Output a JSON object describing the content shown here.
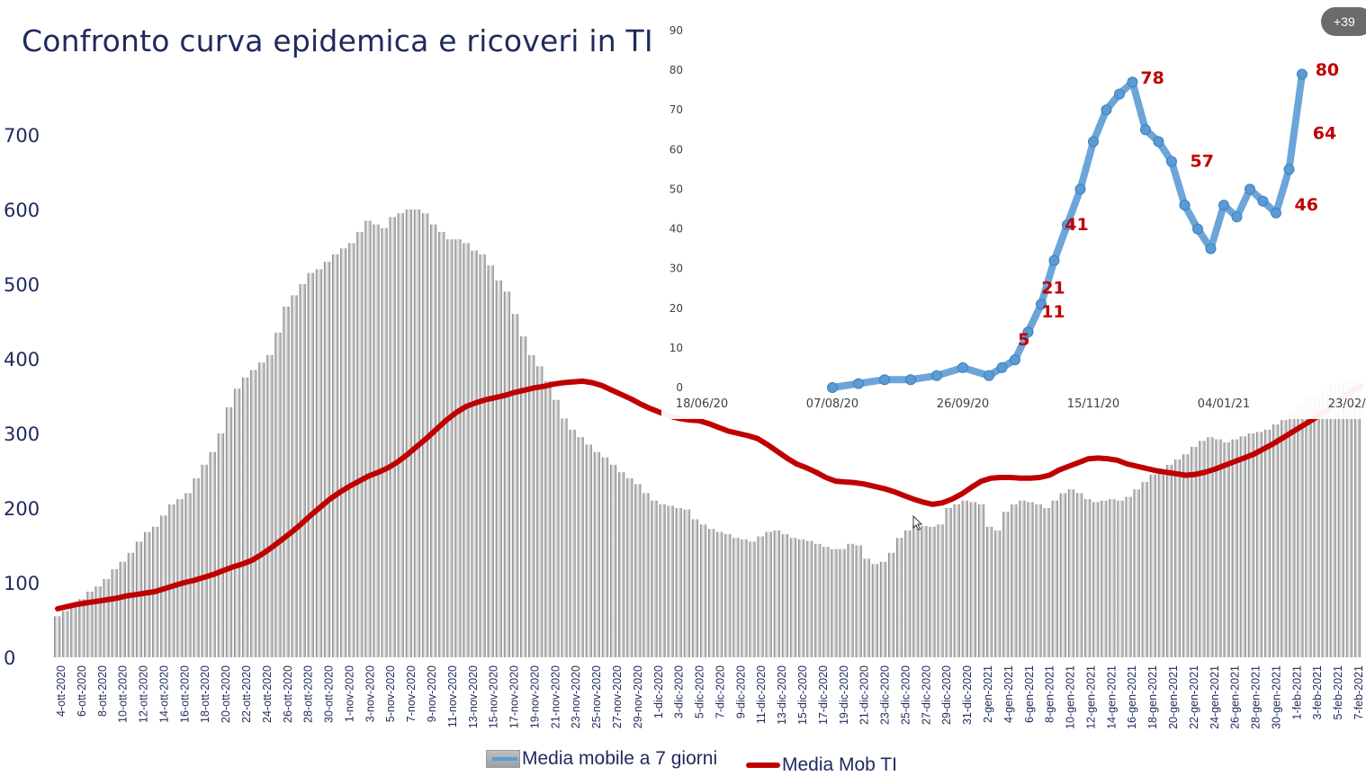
{
  "header": {
    "title": "Confronto curva epidemica e ricoveri in TI",
    "badge": "+39"
  },
  "colors": {
    "bar": "#a6a6a6",
    "main_line": "#c00000",
    "inset_line": "#5b9bd5",
    "inset_label": "#c00000",
    "title": "#1f2a5c"
  },
  "legend": {
    "bars_label": "Media mobile a 7 giorni",
    "line_label": "Media Mob TI"
  },
  "chart_data": [
    {
      "type": "bar",
      "title": "",
      "xlabel": "",
      "ylabel": "",
      "ylim": [
        0,
        700
      ],
      "y_ticks": [
        0,
        100,
        200,
        300,
        400,
        500,
        600,
        700
      ],
      "x_tick_labels": [
        "4-ott-2020",
        "6-ott-2020",
        "8-ott-2020",
        "10-ott-2020",
        "12-ott-2020",
        "14-ott-2020",
        "16-ott-2020",
        "18-ott-2020",
        "20-ott-2020",
        "22-ott-2020",
        "24-ott-2020",
        "26-ott-2020",
        "28-ott-2020",
        "30-ott-2020",
        "1-nov-2020",
        "3-nov-2020",
        "5-nov-2020",
        "7-nov-2020",
        "9-nov-2020",
        "11-nov-2020",
        "13-nov-2020",
        "15-nov-2020",
        "17-nov-2020",
        "19-nov-2020",
        "21-nov-2020",
        "23-nov-2020",
        "25-nov-2020",
        "27-nov-2020",
        "29-nov-2020",
        "1-dic-2020",
        "3-dic-2020",
        "5-dic-2020",
        "7-dic-2020",
        "9-dic-2020",
        "11-dic-2020",
        "13-dic-2020",
        "15-dic-2020",
        "17-dic-2020",
        "19-dic-2020",
        "21-dic-2020",
        "23-dic-2020",
        "25-dic-2020",
        "27-dic-2020",
        "29-dic-2020",
        "31-dic-2020",
        "2-gen-2021",
        "4-gen-2021",
        "6-gen-2021",
        "8-gen-2021",
        "10-gen-2021",
        "12-gen-2021",
        "14-gen-2021",
        "16-gen-2021",
        "18-gen-2021",
        "20-gen-2021",
        "22-gen-2021",
        "24-gen-2021",
        "26-gen-2021",
        "28-gen-2021",
        "30-gen-2021",
        "1-feb-2021",
        "3-feb-2021",
        "5-feb-2021",
        "7-feb-2021"
      ],
      "series": [
        {
          "name": "Media mobile a 7 giorni",
          "type": "bar",
          "values": [
            55,
            62,
            70,
            78,
            88,
            95,
            105,
            118,
            128,
            140,
            155,
            168,
            175,
            190,
            205,
            212,
            220,
            240,
            258,
            275,
            300,
            335,
            360,
            375,
            385,
            395,
            405,
            435,
            470,
            485,
            500,
            515,
            520,
            530,
            540,
            548,
            555,
            570,
            585,
            580,
            575,
            590,
            595,
            600,
            600,
            595,
            580,
            570,
            560,
            560,
            555,
            545,
            540,
            525,
            505,
            490,
            460,
            430,
            405,
            390,
            370,
            345,
            320,
            305,
            295,
            285,
            275,
            268,
            258,
            248,
            240,
            232,
            220,
            210,
            205,
            203,
            200,
            198,
            185,
            178,
            172,
            168,
            165,
            160,
            158,
            155,
            162,
            168,
            170,
            165,
            160,
            158,
            156,
            152,
            148,
            145,
            145,
            152,
            150,
            132,
            125,
            128,
            140,
            160,
            170,
            178,
            176,
            175,
            178,
            200,
            205,
            210,
            208,
            205,
            175,
            170,
            195,
            205,
            210,
            208,
            205,
            200,
            210,
            220,
            225,
            220,
            212,
            208,
            210,
            212,
            210,
            215,
            225,
            235,
            245,
            250,
            258,
            265,
            272,
            282,
            290,
            295,
            292,
            288,
            292,
            296,
            300,
            302,
            305,
            312,
            318,
            330,
            338,
            348,
            350,
            358,
            365,
            368,
            370,
            372
          ]
        },
        {
          "name": "Media Mob TI",
          "type": "line",
          "values": [
            65,
            68,
            71,
            73,
            75,
            77,
            79,
            82,
            84,
            86,
            88,
            92,
            96,
            100,
            103,
            107,
            111,
            116,
            121,
            125,
            130,
            138,
            147,
            157,
            167,
            178,
            190,
            201,
            212,
            221,
            229,
            236,
            243,
            248,
            254,
            262,
            272,
            283,
            294,
            306,
            318,
            328,
            336,
            341,
            345,
            348,
            351,
            355,
            358,
            361,
            363,
            366,
            368,
            369,
            370,
            368,
            364,
            358,
            352,
            346,
            339,
            333,
            328,
            323,
            320,
            318,
            317,
            313,
            308,
            303,
            300,
            297,
            293,
            285,
            276,
            267,
            259,
            254,
            248,
            241,
            236,
            235,
            234,
            232,
            229,
            226,
            222,
            217,
            212,
            208,
            205,
            207,
            212,
            219,
            228,
            236,
            240,
            241,
            241,
            240,
            240,
            241,
            244,
            251,
            256,
            261,
            266,
            267,
            266,
            264,
            259,
            256,
            253,
            250,
            248,
            246,
            244,
            245,
            248,
            252,
            257,
            262,
            267,
            272,
            279,
            286,
            294,
            302,
            310,
            318,
            327,
            336,
            346,
            356,
            363
          ]
        }
      ]
    },
    {
      "type": "scatter",
      "title": "",
      "xlabel": "",
      "ylabel": "",
      "ylim": [
        0,
        90
      ],
      "y_ticks": [
        0,
        10,
        20,
        30,
        40,
        50,
        60,
        70,
        80,
        90
      ],
      "x_tick_labels": [
        "18/06/20",
        "07/08/20",
        "26/09/20",
        "15/11/20",
        "04/01/21",
        "23/02/21"
      ],
      "x_range": [
        "18/06/20",
        "23/02/21"
      ],
      "series": [
        {
          "name": "",
          "x": [
            "2020-08-07",
            "2020-08-17",
            "2020-08-27",
            "2020-09-06",
            "2020-09-16",
            "2020-09-26",
            "2020-10-06",
            "2020-10-11",
            "2020-10-16",
            "2020-10-21",
            "2020-10-26",
            "2020-10-31",
            "2020-11-05",
            "2020-11-10",
            "2020-11-15",
            "2020-11-20",
            "2020-11-25",
            "2020-11-30",
            "2020-12-05",
            "2020-12-10",
            "2020-12-15",
            "2020-12-20",
            "2020-12-25",
            "2020-12-30",
            "2021-01-04",
            "2021-01-09",
            "2021-01-14",
            "2021-01-19",
            "2021-01-24",
            "2021-01-29",
            "2021-02-03"
          ],
          "y": [
            0,
            1,
            2,
            2,
            3,
            5,
            3,
            5,
            7,
            14,
            21,
            32,
            41,
            50,
            62,
            70,
            74,
            77,
            65,
            62,
            57,
            46,
            40,
            35,
            46,
            43,
            50,
            47,
            44,
            55,
            79
          ]
        }
      ],
      "annotations": [
        {
          "text": "78",
          "x": "2020-12-01",
          "y": 78
        },
        {
          "text": "80",
          "x": "2021-02-06",
          "y": 80
        },
        {
          "text": "64",
          "x": "2021-02-05",
          "y": 64
        },
        {
          "text": "57",
          "x": "2020-12-20",
          "y": 57
        },
        {
          "text": "46",
          "x": "2021-01-29",
          "y": 46
        },
        {
          "text": "41",
          "x": "2020-11-02",
          "y": 41
        },
        {
          "text": "21",
          "x": "2020-10-24",
          "y": 25
        },
        {
          "text": "11",
          "x": "2020-10-24",
          "y": 19
        },
        {
          "text": "5",
          "x": "2020-10-15",
          "y": 12
        }
      ]
    }
  ]
}
